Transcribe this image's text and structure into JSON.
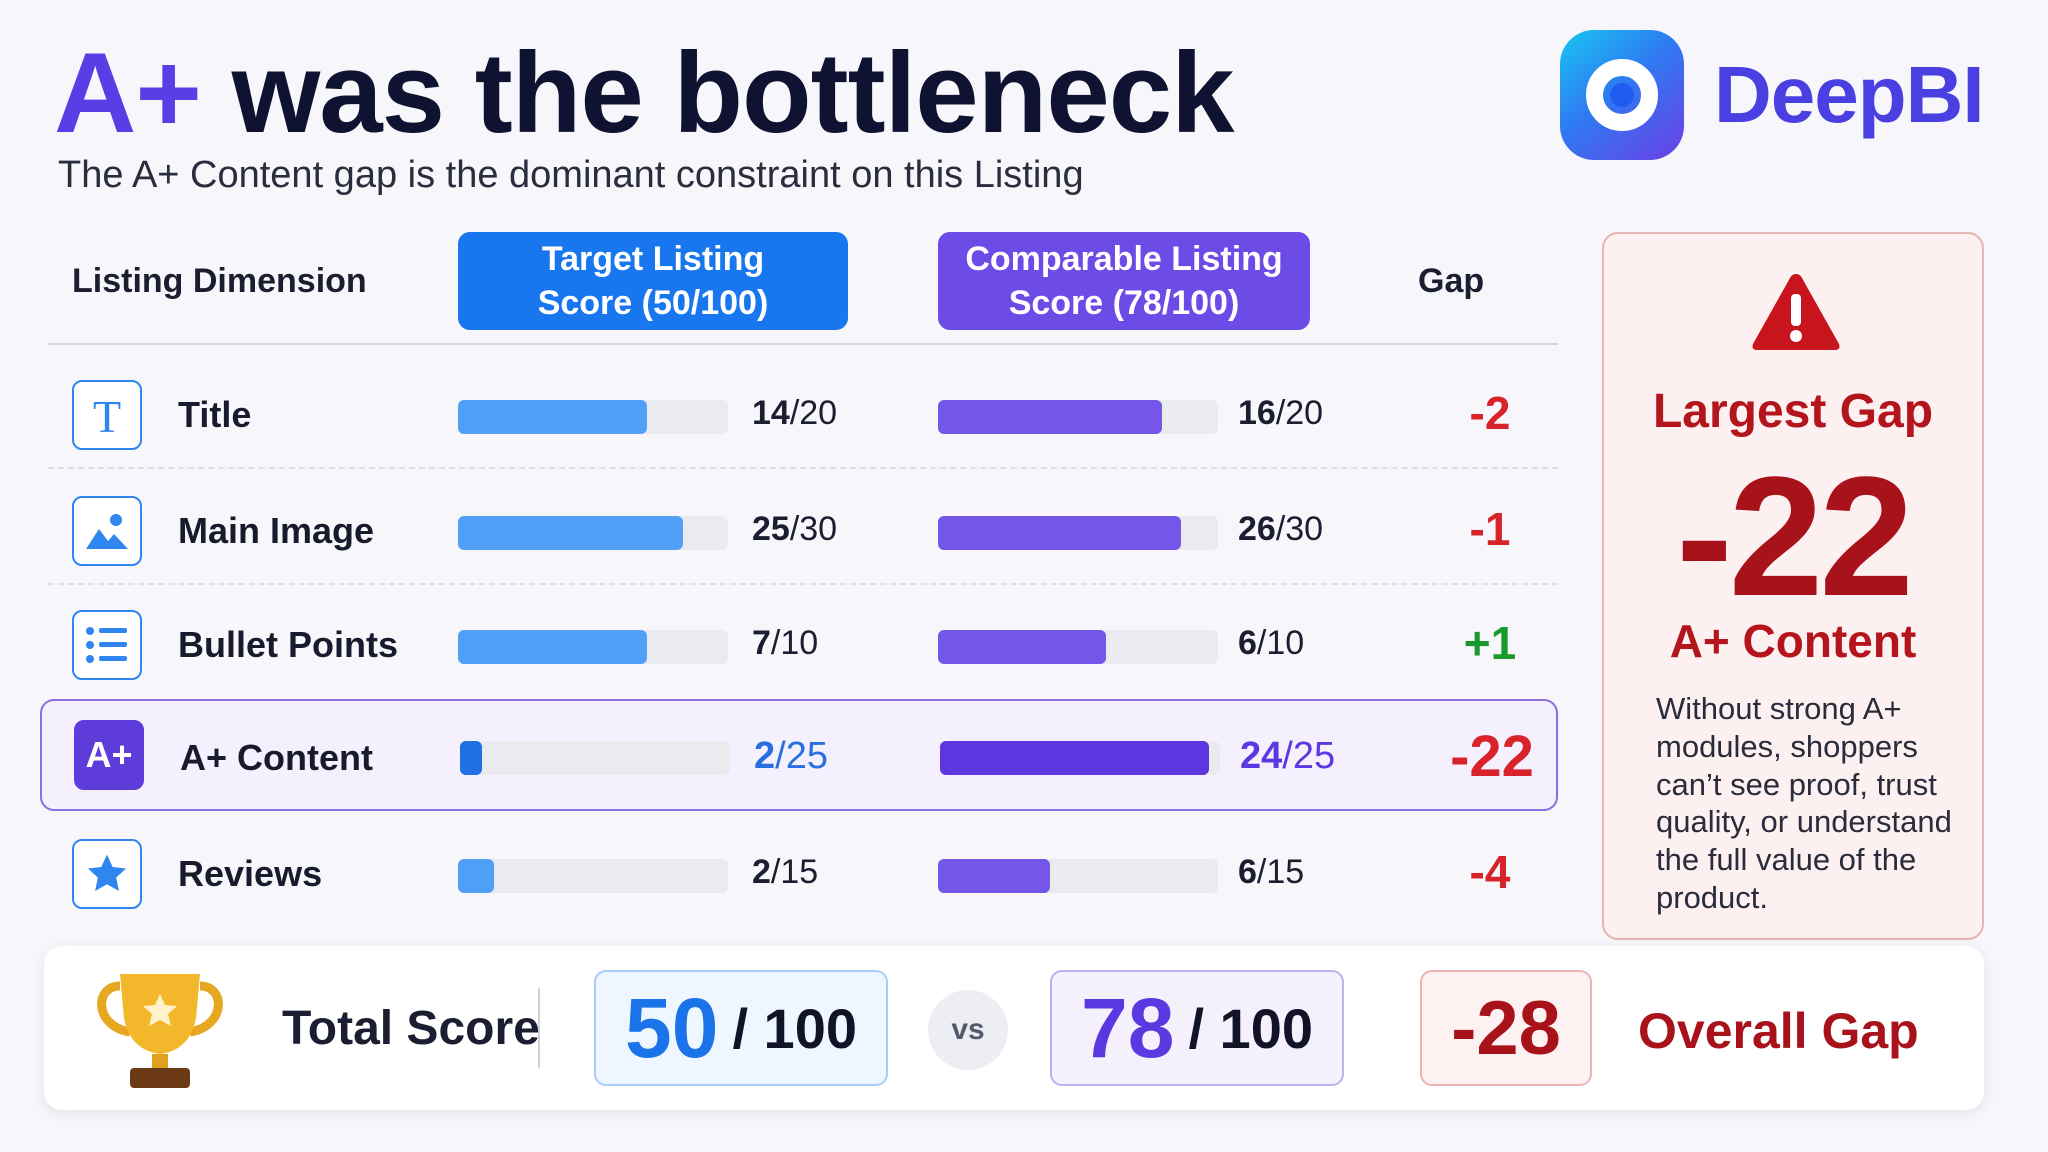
{
  "header": {
    "title_accent": "A+",
    "title_rest": "was the bottleneck",
    "subtitle": "The A+ Content gap is the dominant constraint on this Listing",
    "brand": "DeepBI"
  },
  "table": {
    "col_dimension": "Listing Dimension",
    "col_target_line1": "Target Listing",
    "col_target_line2": "Score (50/100)",
    "col_comp_line1": "Comparable Listing",
    "col_comp_line2": "Score (78/100)",
    "col_gap": "Gap",
    "rows": [
      {
        "label": "Title",
        "target_num": "14",
        "target_den": "/20",
        "target_frac": 0.7,
        "comp_num": "16",
        "comp_den": "/20",
        "comp_frac": 0.8,
        "gap": "-2"
      },
      {
        "label": "Main Image",
        "target_num": "25",
        "target_den": "/30",
        "target_frac": 0.833,
        "comp_num": "26",
        "comp_den": "/30",
        "comp_frac": 0.867,
        "gap": "-1"
      },
      {
        "label": "Bullet Points",
        "target_num": "7",
        "target_den": "/10",
        "target_frac": 0.7,
        "comp_num": "6",
        "comp_den": "/10",
        "comp_frac": 0.6,
        "gap": "+1"
      },
      {
        "label": "A+ Content",
        "icon_text": "A+",
        "target_num": "2",
        "target_den": "/25",
        "target_frac": 0.08,
        "comp_num": "24",
        "comp_den": "/25",
        "comp_frac": 0.96,
        "gap": "-22"
      },
      {
        "label": "Reviews",
        "target_num": "2",
        "target_den": "/15",
        "target_frac": 0.133,
        "comp_num": "6",
        "comp_den": "/15",
        "comp_frac": 0.4,
        "gap": "-4"
      }
    ]
  },
  "panel": {
    "title": "Largest Gap",
    "value": "-22",
    "subject": "A+ Content",
    "description": "Without strong A+ modules, shoppers can’t see proof, trust quality, or understand the full value of the product."
  },
  "total": {
    "label": "Total Score",
    "target": "50",
    "comparable": "78",
    "out_of": "/ 100",
    "vs": "vs",
    "gap": "-28",
    "gap_label": "Overall Gap"
  },
  "colors": {
    "target": "#1877ee",
    "comparable": "#6c4be6",
    "negative": "#d8232a",
    "positive": "#1a9a2c"
  }
}
